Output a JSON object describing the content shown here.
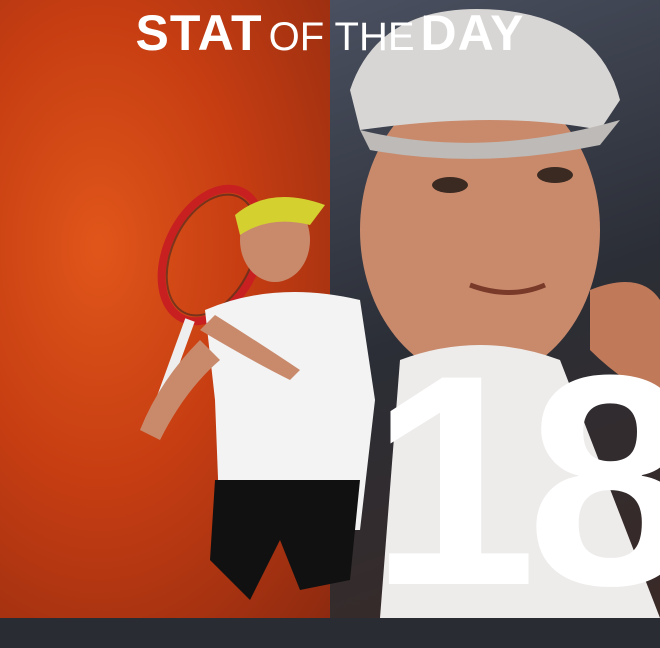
{
  "title": {
    "part1": "STAT",
    "part2": "OF THE",
    "part3": "DAY"
  },
  "stat_value": "18",
  "colors": {
    "left_background": "#c63d12",
    "right_background": "#2b2e36",
    "text": "#ffffff"
  }
}
